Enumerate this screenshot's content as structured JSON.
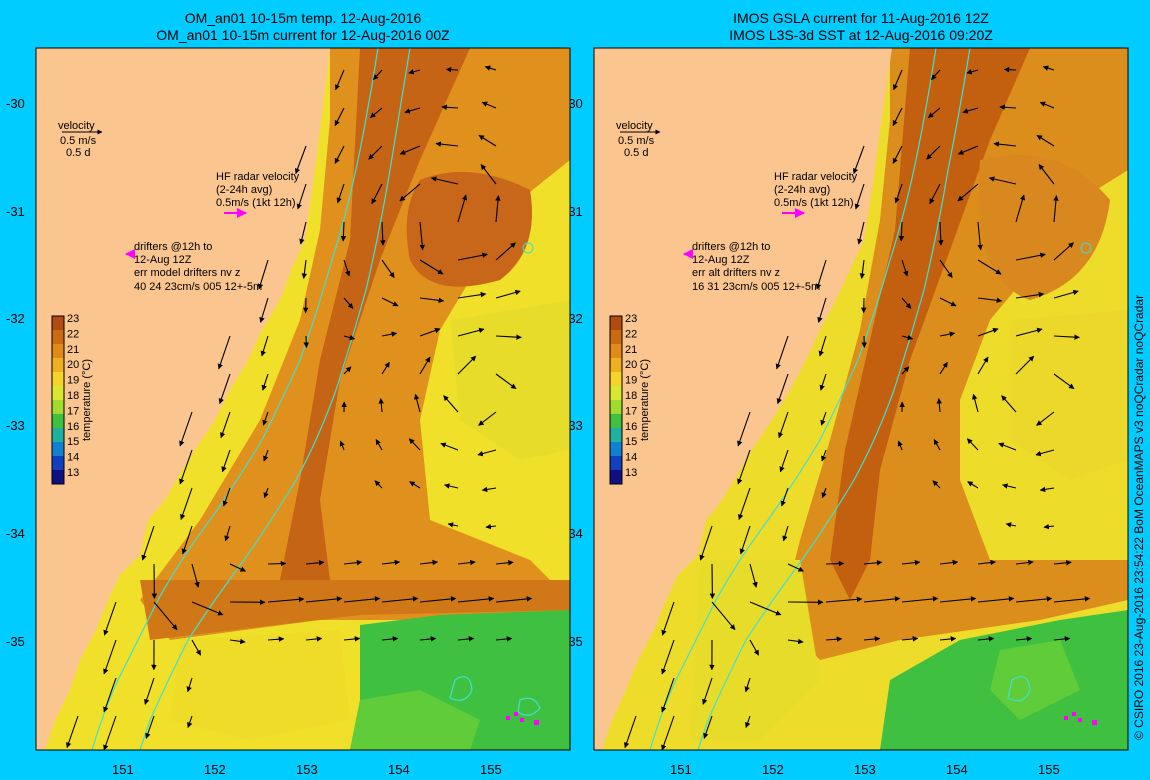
{
  "panels": [
    {
      "title_line1": "OM_an01 10-15m temp. 12-Aug-2016",
      "title_line2": "OM_an01 10-15m current for 12-Aug-2016 00Z",
      "velocity_label": "velocity",
      "velocity_scale": "0.5 m/s",
      "velocity_days": "0.5 d",
      "hf_radar_line1": "HF radar velocity",
      "hf_radar_line2": "(2-24h avg)",
      "hf_radar_line3": "0.5m/s (1kt 12h)",
      "drifters_line1": "drifters @12h to",
      "drifters_line2": "12-Aug 12Z",
      "drifters_line3": "err model drifters nv z",
      "drifters_line4": "40 24 23cm/s 005 12+-5m"
    },
    {
      "title_line1": "IMOS GSLA current for 11-Aug-2016 12Z",
      "title_line2": "IMOS L3S-3d SST at 12-Aug-2016 09:20Z",
      "velocity_label": "velocity",
      "velocity_scale": "0.5 m/s",
      "velocity_days": "0.5 d",
      "hf_radar_line1": "HF radar velocity",
      "hf_radar_line2": "(2-24h avg)",
      "hf_radar_line3": "0.5m/s (1kt 12h)",
      "drifters_line1": "drifters @12h to",
      "drifters_line2": "12-Aug 12Z",
      "drifters_line3": "err alt drifters nv z",
      "drifters_line4": "16 31 23cm/s 005 12+-5m"
    }
  ],
  "latitude_ticks": [
    "-30",
    "-31",
    "-32",
    "-33",
    "-34",
    "-35"
  ],
  "longitude_ticks": [
    "151",
    "152",
    "153",
    "154",
    "155"
  ],
  "colorbar": {
    "label": "temperature (°C)",
    "ticks": [
      "23",
      "22",
      "21",
      "20",
      "19",
      "18",
      "17",
      "16",
      "15",
      "14",
      "13"
    ],
    "colors": [
      "#b34a10",
      "#cc6a10",
      "#e08a18",
      "#eeb020",
      "#f4d428",
      "#d8e830",
      "#a0dc30",
      "#40c040",
      "#20b0a0",
      "#1080d0",
      "#1040c0",
      "#101080"
    ]
  },
  "credit": "© CSIRO 2016   23-Aug-2016 23:54:22 BoM OceanMAPS v3 noQCradar noQCradar",
  "colors": {
    "background": "#00ccff",
    "land": "#fbc590",
    "arrow": "#000000",
    "drifter": "#ff00ff",
    "isobath": "#40e0d0"
  }
}
